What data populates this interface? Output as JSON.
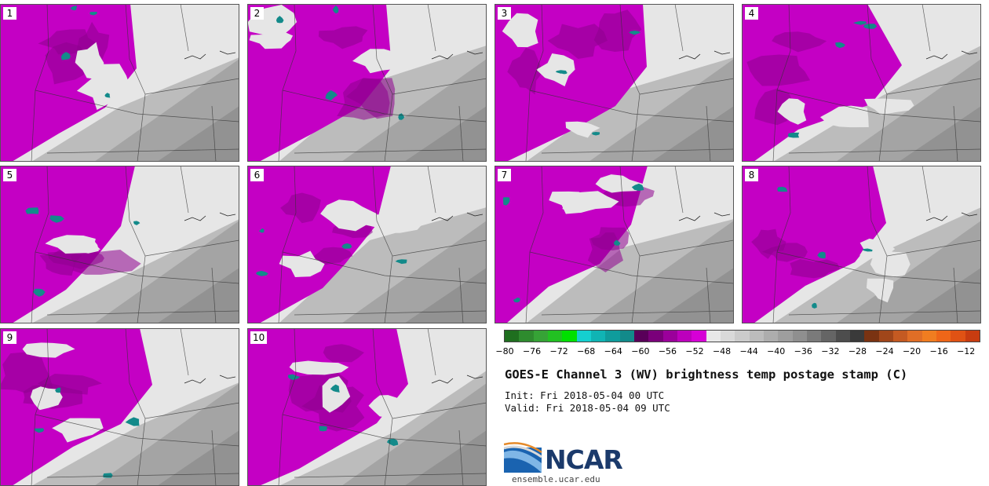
{
  "panels": [
    "1",
    "2",
    "3",
    "4",
    "5",
    "6",
    "7",
    "8",
    "9",
    "10"
  ],
  "colorbar": {
    "colors": [
      "#1f6f1f",
      "#2e8b2e",
      "#36a336",
      "#22c022",
      "#00e000",
      "#15cfcf",
      "#10b4b4",
      "#0f9c9c",
      "#128a8a",
      "#590059",
      "#7a007a",
      "#9b009b",
      "#bc00bc",
      "#d600d6",
      "#e8e8e8",
      "#d9d9d9",
      "#cbcbcb",
      "#bcbcbc",
      "#adadad",
      "#9e9e9e",
      "#8f8f8f",
      "#7a7a7a",
      "#656565",
      "#4d4d4d",
      "#3a3a3a",
      "#7a3312",
      "#a0461a",
      "#c45a22",
      "#e06e26",
      "#f07d20",
      "#ee6618",
      "#e05214",
      "#c83c10"
    ],
    "ticks": [
      "−80",
      "−76",
      "−72",
      "−68",
      "−64",
      "−60",
      "−56",
      "−52",
      "−48",
      "−44",
      "−40",
      "−36",
      "−32",
      "−28",
      "−24",
      "−20",
      "−16",
      "−12"
    ],
    "range": [
      -80,
      -12
    ]
  },
  "title": "GOES-E Channel 3 (WV) brightness temp postage stamp (C)",
  "init": "Init: Fri 2018-05-04 00 UTC",
  "valid": "Valid: Fri 2018-05-04 09 UTC",
  "logo_text": "NCAR",
  "site": "ensemble.ucar.edu",
  "colors": {
    "magenta": "#c400c4",
    "dark_magenta": "#8e008e",
    "teal": "#138a8a",
    "light_gray": "#e6e6e6",
    "mid_gray": "#bcbcbc",
    "dark_gray": "#9a9a9a"
  }
}
